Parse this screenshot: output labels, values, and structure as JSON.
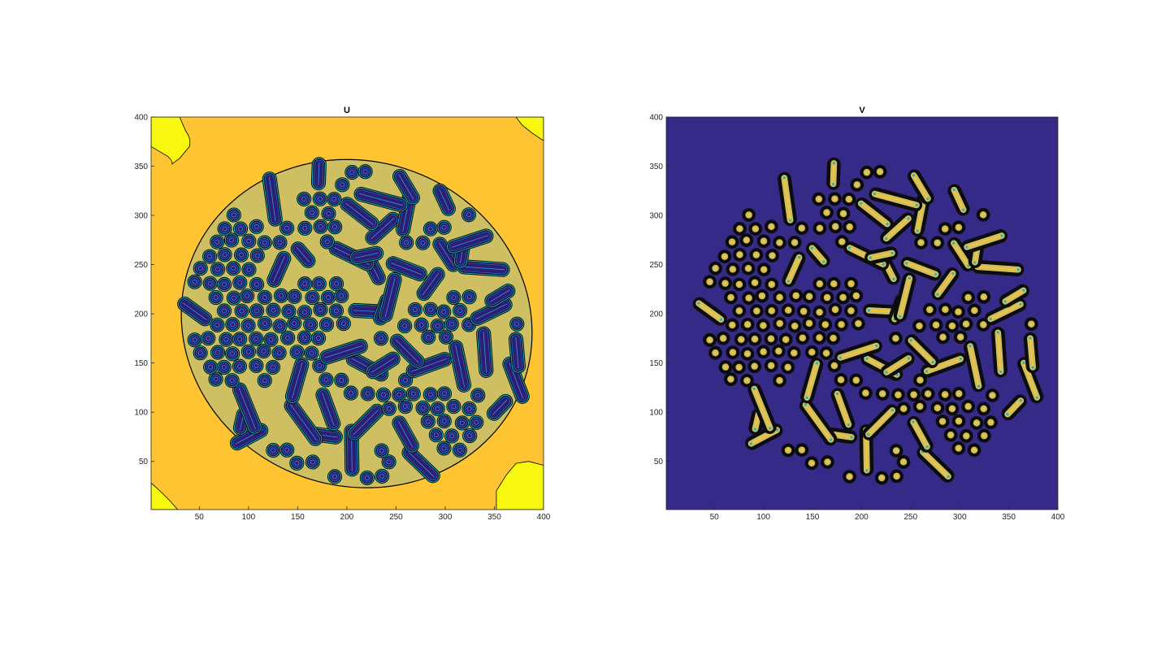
{
  "chart_data": [
    {
      "type": "heatmap",
      "subtype": "filled-contour",
      "title": "U",
      "xlim": [
        1,
        400
      ],
      "ylim": [
        1,
        400
      ],
      "xticks": [
        50,
        100,
        150,
        200,
        250,
        300,
        350,
        400
      ],
      "yticks": [
        50,
        100,
        150,
        200,
        250,
        300,
        350,
        400
      ],
      "background_color": "#FEC431",
      "corner_color": "#F7F710",
      "blob_fill_color": "#CDBF62",
      "spot_color": "#2A1F70",
      "spot_ring_color": "#1EB3C6",
      "pattern_region": {
        "center": [
          210,
          190
        ],
        "radius_x": 180,
        "radius_y": 165,
        "rotation_deg": -20
      },
      "corner_regions": [
        "top-left",
        "top-right",
        "bottom-left",
        "bottom-right"
      ]
    },
    {
      "type": "heatmap",
      "subtype": "filled-contour",
      "title": "V",
      "xlim": [
        1,
        400
      ],
      "ylim": [
        1,
        400
      ],
      "xticks": [
        50,
        100,
        150,
        200,
        250,
        300,
        350,
        400
      ],
      "yticks": [
        50,
        100,
        150,
        200,
        250,
        300,
        350,
        400
      ],
      "background_color": "#352A87",
      "spot_ring_color": "#0D0D0D",
      "spot_fill_color": "#CDBF62",
      "spot_core_color": "#FEC431",
      "pattern_region": {
        "center": [
          210,
          190
        ],
        "radius_x": 180,
        "radius_y": 165,
        "rotation_deg": -20
      }
    }
  ]
}
